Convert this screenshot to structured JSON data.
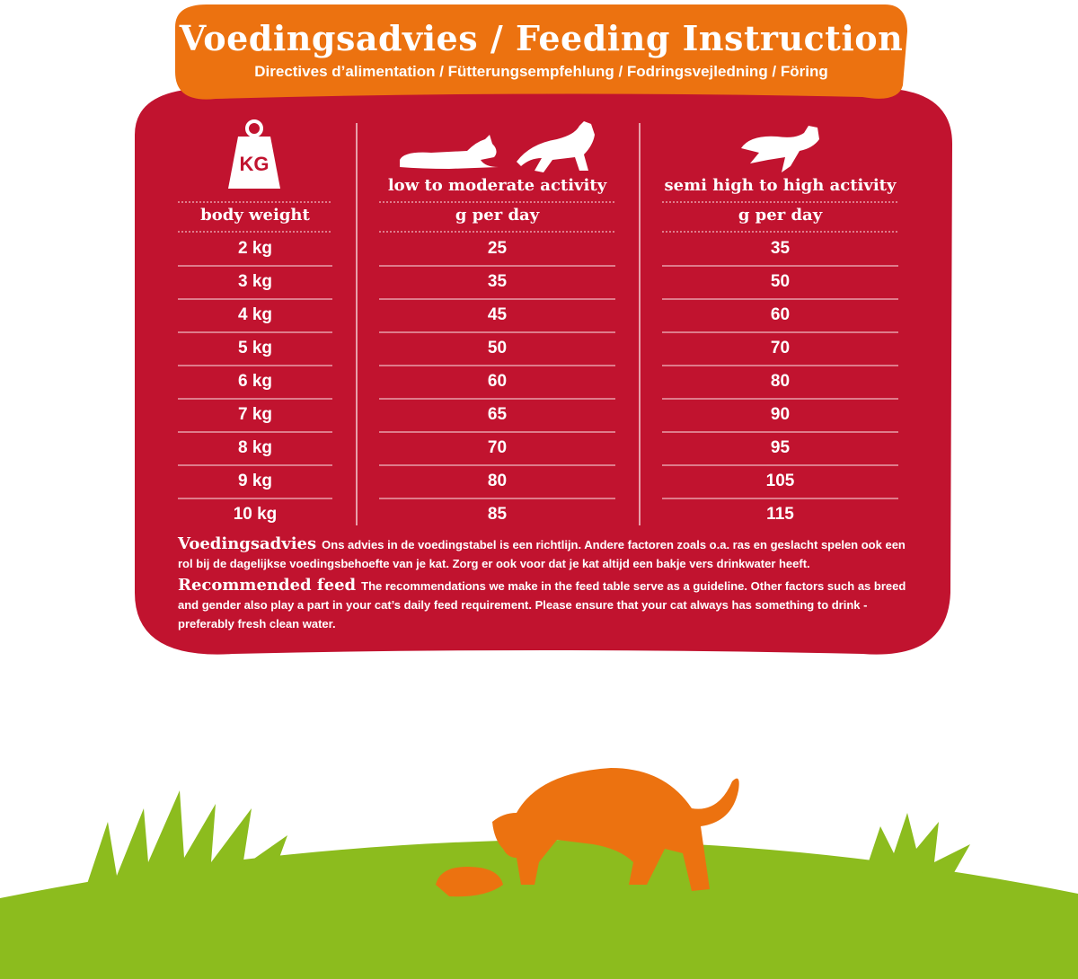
{
  "header": {
    "title": "Voedingsadvies / Feeding Instruction",
    "subtitle": "Directives d’alimentation / Fütterungsempfehlung / Fodringsvejledning / Föring"
  },
  "table": {
    "weight_icon": "KG",
    "columns": [
      {
        "label": null,
        "unit": "body weight"
      },
      {
        "label": "low to moderate activity",
        "unit": "g per day"
      },
      {
        "label": "semi high to high activity",
        "unit": "g per day"
      }
    ],
    "rows": [
      [
        "2 kg",
        25,
        35
      ],
      [
        "3 kg",
        35,
        50
      ],
      [
        "4 kg",
        45,
        60
      ],
      [
        "5 kg",
        50,
        70
      ],
      [
        "6 kg",
        60,
        80
      ],
      [
        "7 kg",
        65,
        90
      ],
      [
        "8 kg",
        70,
        95
      ],
      [
        "9 kg",
        80,
        105
      ],
      [
        "10 kg",
        85,
        115
      ]
    ]
  },
  "notes": [
    {
      "title": "Voedingsadvies",
      "text": "Ons advies in de voedingstabel is een richtlijn. Andere factoren zoals o.a. ras en geslacht spelen ook een rol bij de dagelijkse voedingsbehoefte van je kat. Zorg er ook voor dat je kat altijd een bakje vers drinkwater heeft."
    },
    {
      "title": "Recommended feed",
      "text": "The recommendations we make in the feed table serve as a guideline. Other factors such as breed and gender also play a part in your cat’s daily feed requirement. Please ensure that your cat always has something to drink - preferably fresh clean water."
    }
  ]
}
